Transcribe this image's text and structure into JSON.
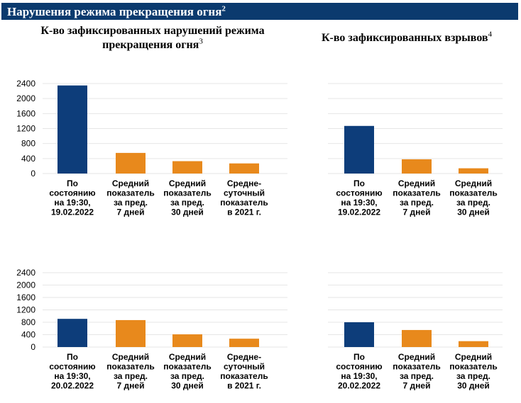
{
  "header": {
    "title": "Нарушения режима прекращения огня",
    "footnote": "2"
  },
  "titles": {
    "left": {
      "text": "К-во зафиксированных нарушений режима прекращения огня",
      "footnote": "3"
    },
    "right": {
      "text": "К-во зафиксированных взрывов",
      "footnote": "4"
    }
  },
  "colors": {
    "banner": "#0b3a6e",
    "current": "#0d3d7a",
    "average": "#e8891c",
    "grid": "#e6e6e6"
  },
  "chart_data": [
    {
      "type": "bar",
      "categories": [
        "По состоянию на 19:30, 19.02.2022",
        "Средний показатель за пред. 7 дней",
        "Средний показатель за пред. 30 дней",
        "Средне-суточный показатель в 2021 г."
      ],
      "category_lines": [
        [
          "По",
          "состоянию",
          "на 19:30,",
          "19.02.2022"
        ],
        [
          "Средний",
          "показатель",
          "за пред.",
          "7 дней"
        ],
        [
          "Средний",
          "показатель",
          "за пред.",
          "30 дней"
        ],
        [
          "Средне-",
          "суточный",
          "показатель",
          "в 2021 г."
        ]
      ],
      "values": [
        2350,
        550,
        330,
        270
      ],
      "ylim": [
        0,
        2400
      ],
      "yticks": [
        0,
        400,
        800,
        1200,
        1600,
        2000,
        2400
      ],
      "grid": true
    },
    {
      "type": "bar",
      "categories": [
        "По состоянию на 19:30, 19.02.2022",
        "Средний показатель за пред. 7 дней",
        "Средний показатель за пред. 30 дней"
      ],
      "category_lines": [
        [
          "По",
          "состоянию",
          "на 19:30,",
          "19.02.2022"
        ],
        [
          "Средний",
          "показатель",
          "за пред.",
          "7 дней"
        ],
        [
          "Средний",
          "показатель",
          "за пред.",
          "30 дней"
        ]
      ],
      "values": [
        1270,
        380,
        140
      ],
      "ylim": [
        0,
        2400
      ],
      "yticks": [],
      "grid": true
    },
    {
      "type": "bar",
      "categories": [
        "По состоянию на 19:30, 20.02.2022",
        "Средний показатель за пред. 7 дней",
        "Средний показатель за пред. 30 дней",
        "Средне-суточный показатель в 2021 г."
      ],
      "category_lines": [
        [
          "По",
          "состоянию",
          "на 19:30,",
          "20.02.2022"
        ],
        [
          "Средний",
          "показатель",
          "за пред.",
          "7 дней"
        ],
        [
          "Средний",
          "показатель",
          "за пред.",
          "30 дней"
        ],
        [
          "Средне-",
          "суточный",
          "показатель",
          "в 2021 г."
        ]
      ],
      "values": [
        910,
        870,
        410,
        270
      ],
      "ylim": [
        0,
        2400
      ],
      "yticks": [
        0,
        400,
        800,
        1200,
        1600,
        2000,
        2400
      ],
      "grid": true
    },
    {
      "type": "bar",
      "categories": [
        "По состоянию на 19:30, 20.02.2022",
        "Средний показатель за пред. 7 дней",
        "Средний показатель за пред. 30 дней"
      ],
      "category_lines": [
        [
          "По",
          "состоянию",
          "на 19:30,",
          "20.02.2022"
        ],
        [
          "Средний",
          "показатель",
          "за пред.",
          "7 дней"
        ],
        [
          "Средний",
          "показатель",
          "за пред.",
          "30 дней"
        ]
      ],
      "values": [
        800,
        550,
        190
      ],
      "ylim": [
        0,
        2400
      ],
      "yticks": [],
      "grid": true
    }
  ]
}
